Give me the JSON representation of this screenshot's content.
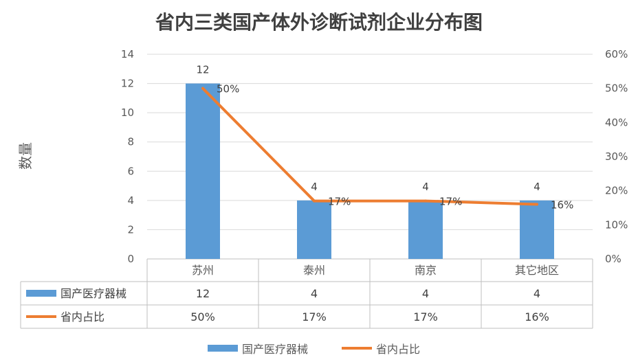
{
  "chart_data": {
    "type": "bar",
    "title": "省内三类国产体外诊断试剂企业分布图",
    "ylabel": "数量",
    "categories": [
      "苏州",
      "泰州",
      "南京",
      "其它地区"
    ],
    "ylim": [
      0,
      14
    ],
    "y_ticks": [
      "0",
      "2",
      "4",
      "6",
      "8",
      "10",
      "12",
      "14"
    ],
    "y2lim": [
      0,
      60
    ],
    "y2_ticks": [
      "0%",
      "10%",
      "20%",
      "30%",
      "40%",
      "50%",
      "60%"
    ],
    "grid": true,
    "legend_position": "bottom",
    "series": [
      {
        "name": "国产医疗器械",
        "kind": "bar",
        "axis": "left",
        "color": "#5b9bd5",
        "values": [
          12,
          4,
          4,
          4
        ],
        "labels": [
          "12",
          "4",
          "4",
          "4"
        ]
      },
      {
        "name": "省内占比",
        "kind": "line",
        "axis": "right",
        "color": "#ed7d31",
        "values": [
          50,
          17,
          17,
          16
        ],
        "labels": [
          "50%",
          "17%",
          "17%",
          "16%"
        ]
      }
    ]
  }
}
